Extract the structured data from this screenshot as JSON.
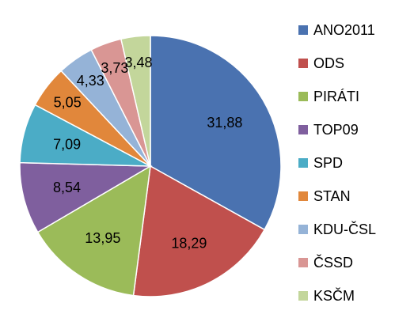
{
  "chart_data": {
    "type": "pie",
    "categories": [
      "ANO2011",
      "ODS",
      "PIRÁTI",
      "TOP09",
      "SPD",
      "STAN",
      "KDU-ČSL",
      "ČSSD",
      "KSČM"
    ],
    "values": [
      31.88,
      18.29,
      13.95,
      8.54,
      7.09,
      5.05,
      4.33,
      3.73,
      3.48
    ],
    "data_labels": [
      "31,88",
      "18,29",
      "13,95",
      "8,54",
      "7,09",
      "5,05",
      "4,33",
      "3,73",
      "3,48"
    ],
    "colors": [
      "#4a72b0",
      "#c0504d",
      "#9bbb59",
      "#7f5f9e",
      "#4bacc6",
      "#e1873b",
      "#95b3d7",
      "#d99694",
      "#c3d69b"
    ],
    "start_angle_deg": 0,
    "direction": "clockwise",
    "legend_position": "right",
    "title": ""
  }
}
